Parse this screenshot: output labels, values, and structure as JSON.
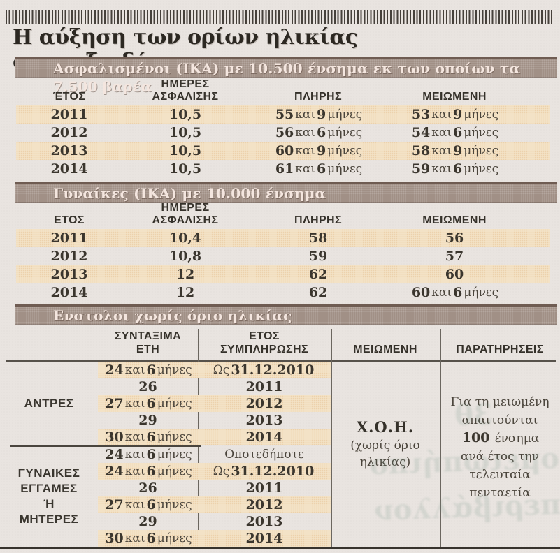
{
  "title": "Η αύξηση των ορίων ηλικίας συνταξιοδότησης",
  "colors": {
    "paper": "#e9e4e0",
    "section_bar": "#a19086",
    "row_stripe": "#f3e2c6",
    "ink": "#3b362e"
  },
  "tables": [
    {
      "header": "Ασφαλισμένοι (ΙΚΑ) με 10.500 ένσημα εκ των οποίων τα 7.500 βαρέα",
      "columns": [
        "ΈΤΟΣ",
        "ΗΜΕΡΕΣ\nΑΣΦΑΛΙΣΗΣ",
        "ΠΛΗΡΗΣ",
        "ΜΕΙΩΜΕΝΗ"
      ],
      "rows": [
        [
          "2011",
          "10,5",
          "55 και 9 μήνες",
          "53 και 9 μήνες"
        ],
        [
          "2012",
          "10,5",
          "56 και 6 μήνες",
          "54 και 6 μήνες"
        ],
        [
          "2013",
          "10,5",
          "60 και 9 μήνες",
          "58 και 9 μήνες"
        ],
        [
          "2014",
          "10,5",
          "61 και 6 μήνες",
          "59 και 6 μήνες"
        ]
      ]
    },
    {
      "header": "Γυναίκες (ΙΚΑ) με 10.000 ένσημα",
      "columns": [
        "ΕΤΟΣ",
        "ΗΜΕΡΕΣ\nΑΣΦΑΛΙΣΗΣ",
        "ΠΛΗΡΗΣ",
        "ΜΕΙΩΜΕΝΗ"
      ],
      "rows": [
        [
          "2011",
          "10,4",
          "58",
          "56"
        ],
        [
          "2012",
          "10,8",
          "59",
          "57"
        ],
        [
          "2013",
          "12",
          "62",
          "60"
        ],
        [
          "2014",
          "12",
          "62",
          "60 και 6 μήνες"
        ]
      ]
    },
    {
      "header": "Ενστολοι χωρίς όριο ηλικίας",
      "columns": [
        "ΣΥΝΤΑΞΙΜΑ\nΕΤΗ",
        "ΕΤΟΣ\nΣΥΜΠΛΗΡΩΣΗΣ",
        "ΜΕΙΩΜΕΝΗ",
        "ΠΑΡΑΤΗΡΗΣΕΙΣ"
      ],
      "groups": [
        {
          "label": "ΑΝΤΡΕΣ",
          "rows": [
            [
              "24 και 6 μήνες",
              "Ως 31.12.2010"
            ],
            [
              "26",
              "2011"
            ],
            [
              "27 και 6 μήνες",
              "2012"
            ],
            [
              "29",
              "2013"
            ],
            [
              "30 και 6 μήνες",
              "2014"
            ]
          ]
        },
        {
          "label": "ΓΥΝΑΙΚΕΣ\nΕΓΓΑΜΕΣ\nΉ\nΜΗΤΕΡΕΣ",
          "rows": [
            [
              "24 και 6 μήνες",
              "Οποτεδήποτε"
            ],
            [
              "24 και 6 μήνες",
              "Ως 31.12.2010"
            ],
            [
              "26",
              "2011"
            ],
            [
              "27 και 6 μήνες",
              "2012"
            ],
            [
              "29",
              "2013"
            ],
            [
              "30 και 6 μήνες",
              "2014"
            ]
          ]
        }
      ],
      "reduced_cell": {
        "abbr": "Χ.Ο.Η.",
        "full": "(χωρίς όριο\nηλικίας)"
      },
      "notes": "Για τη μειωμένη\nαπαιτούνται\n100 ένσημα\nανά έτος την\nτελευταία\nπενταετία"
    }
  ],
  "print_bleed": {
    "lines": [
      "3θ",
      "ομειωπήιπο",
      "περιβάλλον"
    ]
  }
}
